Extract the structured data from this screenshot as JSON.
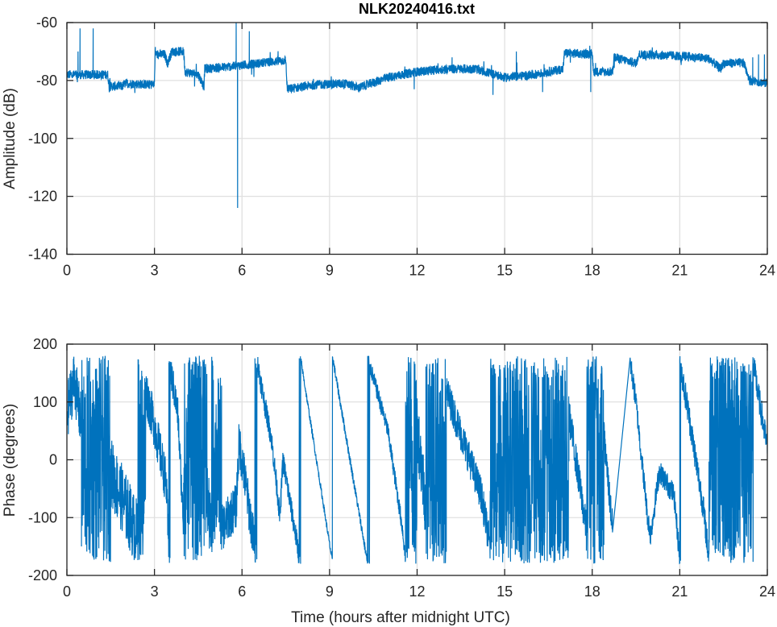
{
  "title": "NLK20240416.txt",
  "colors": {
    "line": "#0072BD",
    "grid": "#e0e0e0",
    "axis": "#262626"
  },
  "chart_data": [
    {
      "type": "line",
      "title": "NLK20240416.txt",
      "xlabel": "",
      "ylabel": "Amplitude (dB)",
      "xlim": [
        0,
        24
      ],
      "ylim": [
        -140,
        -60
      ],
      "xticks": [
        0,
        3,
        6,
        9,
        12,
        15,
        18,
        21,
        24
      ],
      "yticks": [
        -140,
        -120,
        -100,
        -80,
        -60
      ],
      "grid": true,
      "baseline": [
        [
          0,
          -78
        ],
        [
          1.4,
          -78
        ],
        [
          1.45,
          -82
        ],
        [
          1.9,
          -82
        ],
        [
          2.0,
          -81
        ],
        [
          3.0,
          -81.5
        ],
        [
          3.02,
          -71
        ],
        [
          3.35,
          -71
        ],
        [
          3.45,
          -74
        ],
        [
          3.6,
          -70
        ],
        [
          4.0,
          -70
        ],
        [
          4.05,
          -77
        ],
        [
          4.5,
          -78
        ],
        [
          4.7,
          -82
        ],
        [
          4.72,
          -76
        ],
        [
          5.8,
          -75
        ],
        [
          6.2,
          -74.5
        ],
        [
          7.5,
          -73
        ],
        [
          7.55,
          -83
        ],
        [
          8.5,
          -81.5
        ],
        [
          9.5,
          -81
        ],
        [
          10.0,
          -82.5
        ],
        [
          11.0,
          -79
        ],
        [
          12,
          -77
        ],
        [
          13,
          -76
        ],
        [
          14,
          -76
        ],
        [
          15,
          -79
        ],
        [
          16,
          -78
        ],
        [
          17.0,
          -76
        ],
        [
          17.05,
          -70.5
        ],
        [
          18,
          -71
        ],
        [
          18.05,
          -77
        ],
        [
          18.7,
          -77
        ],
        [
          18.75,
          -72
        ],
        [
          19.5,
          -74
        ],
        [
          19.6,
          -71
        ],
        [
          21,
          -71.5
        ],
        [
          21.05,
          -74
        ],
        [
          21.1,
          -71.5
        ],
        [
          22,
          -72.5
        ],
        [
          22.4,
          -76
        ],
        [
          22.5,
          -74
        ],
        [
          23.2,
          -74
        ],
        [
          23.4,
          -80
        ],
        [
          24,
          -81
        ]
      ],
      "noise_db": 1.6,
      "spikes": [
        [
          0.45,
          -62
        ],
        [
          0.38,
          -70
        ],
        [
          0.9,
          -62
        ],
        [
          5.8,
          -60
        ],
        [
          5.85,
          -124
        ],
        [
          6.25,
          -63
        ],
        [
          11.9,
          -83
        ],
        [
          13.2,
          -72
        ],
        [
          14.6,
          -85
        ],
        [
          15.4,
          -70
        ],
        [
          16.3,
          -84
        ],
        [
          17.95,
          -84
        ],
        [
          23.5,
          -72
        ],
        [
          23.7,
          -71
        ],
        [
          23.9,
          -71
        ]
      ]
    },
    {
      "type": "line",
      "title": "",
      "xlabel": "Time (hours after midnight UTC)",
      "ylabel": "Phase (degrees)",
      "xlim": [
        0,
        24
      ],
      "ylim": [
        -200,
        200
      ],
      "xticks": [
        0,
        3,
        6,
        9,
        12,
        15,
        18,
        21,
        24
      ],
      "yticks": [
        -200,
        -100,
        0,
        100,
        200
      ],
      "grid": true,
      "segments": [
        {
          "noise": 50,
          "pts": [
            [
              0,
              80
            ],
            [
              0.25,
              140
            ],
            [
              0.5,
              60
            ]
          ]
        },
        {
          "noise": 180,
          "pts": [
            [
              0.5,
              0
            ],
            [
              1.5,
              0
            ]
          ]
        },
        {
          "noise": 60,
          "pts": [
            [
              1.5,
              -20
            ],
            [
              2.5,
              -140
            ]
          ]
        },
        {
          "noise": 180,
          "pts": [
            [
              2.5,
              0
            ],
            [
              2.7,
              0
            ]
          ]
        },
        {
          "noise": 40,
          "pts": [
            [
              2.7,
              120
            ],
            [
              3.0,
              60
            ],
            [
              3.4,
              -40
            ],
            [
              3.5,
              -170
            ]
          ]
        },
        {
          "noise": 30,
          "pts": [
            [
              3.5,
              170
            ],
            [
              3.8,
              80
            ],
            [
              4.0,
              -120
            ]
          ]
        },
        {
          "noise": 200,
          "pts": [
            [
              4.0,
              0
            ],
            [
              4.8,
              0
            ]
          ]
        },
        {
          "noise": 60,
          "pts": [
            [
              4.8,
              -60
            ],
            [
              5.0,
              -160
            ]
          ]
        },
        {
          "noise": 150,
          "pts": [
            [
              5.0,
              0
            ],
            [
              5.3,
              0
            ]
          ]
        },
        {
          "noise": 40,
          "pts": [
            [
              5.3,
              -120
            ],
            [
              5.8,
              -80
            ],
            [
              5.9,
              30
            ],
            [
              6.0,
              0
            ],
            [
              6.5,
              -175
            ]
          ]
        },
        {
          "noise": 20,
          "pts": [
            [
              6.5,
              175
            ],
            [
              6.8,
              90
            ],
            [
              7.0,
              40
            ],
            [
              7.2,
              -50
            ],
            [
              7.3,
              -100
            ],
            [
              7.4,
              0
            ],
            [
              8.0,
              -178
            ]
          ]
        },
        {
          "noise": 6,
          "pts": [
            [
              8.0,
              178
            ],
            [
              9.1,
              -178
            ]
          ]
        },
        {
          "noise": 8,
          "pts": [
            [
              9.1,
              178
            ],
            [
              10.3,
              -178
            ]
          ]
        },
        {
          "noise": 15,
          "pts": [
            [
              10.3,
              178
            ],
            [
              11.0,
              50
            ],
            [
              11.5,
              -120
            ],
            [
              11.6,
              -175
            ]
          ]
        },
        {
          "noise": 210,
          "pts": [
            [
              11.6,
              0
            ],
            [
              12.0,
              0
            ]
          ]
        },
        {
          "noise": 60,
          "pts": [
            [
              12.0,
              60
            ],
            [
              12.3,
              -80
            ]
          ]
        },
        {
          "noise": 210,
          "pts": [
            [
              12.3,
              0
            ],
            [
              13.0,
              0
            ]
          ]
        },
        {
          "noise": 30,
          "pts": [
            [
              13.0,
              120
            ],
            [
              14.2,
              -60
            ],
            [
              14.5,
              -150
            ]
          ]
        },
        {
          "noise": 220,
          "pts": [
            [
              14.5,
              0
            ],
            [
              17.2,
              0
            ]
          ]
        },
        {
          "noise": 30,
          "pts": [
            [
              17.2,
              80
            ],
            [
              17.8,
              -120
            ]
          ]
        },
        {
          "noise": 200,
          "pts": [
            [
              17.8,
              0
            ],
            [
              18.4,
              0
            ]
          ]
        },
        {
          "noise": 30,
          "pts": [
            [
              18.4,
              40
            ],
            [
              18.7,
              -120
            ]
          ]
        },
        {
          "noise": 20,
          "pts": [
            [
              19.3,
              170
            ],
            [
              19.5,
              100
            ],
            [
              19.9,
              -100
            ],
            [
              20.0,
              -130
            ],
            [
              20.3,
              -20
            ],
            [
              20.8,
              -60
            ],
            [
              21.0,
              -170
            ]
          ]
        },
        {
          "noise": 25,
          "pts": [
            [
              21.0,
              170
            ],
            [
              21.3,
              80
            ],
            [
              21.8,
              -80
            ],
            [
              22.0,
              -170
            ]
          ]
        },
        {
          "noise": 220,
          "pts": [
            [
              22.0,
              0
            ],
            [
              23.5,
              0
            ]
          ]
        },
        {
          "noise": 25,
          "pts": [
            [
              23.5,
              170
            ],
            [
              24.0,
              20
            ]
          ]
        }
      ]
    }
  ]
}
